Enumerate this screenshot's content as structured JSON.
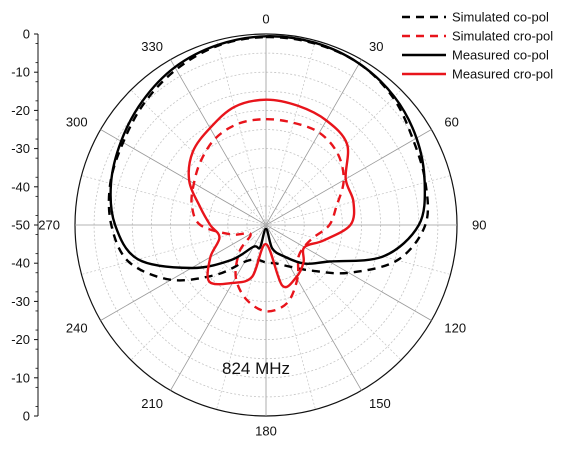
{
  "chart_data": {
    "type": "polar-line",
    "title": "",
    "annotation": "824 MHz",
    "radial_axis": {
      "min": -50,
      "max": 0,
      "step": 10,
      "tick_labels_top": [
        "0",
        "-10",
        "-20",
        "-30",
        "-40",
        "-50"
      ],
      "tick_labels_bottom": [
        "-40",
        "-30",
        "-20",
        "-10",
        "0"
      ]
    },
    "angular_axis": {
      "direction": "clockwise",
      "zero_at": "top",
      "labels": [
        "0",
        "30",
        "60",
        "90",
        "120",
        "150",
        "180",
        "210",
        "240",
        "270",
        "300",
        "330"
      ],
      "grid_step_deg": 15
    },
    "grid": true,
    "legend_position": "top-right",
    "series": [
      {
        "name": "Simulated co-pol",
        "color": "#000000",
        "dash": "dashed",
        "points": [
          [
            0,
            -0.8
          ],
          [
            15,
            -0.8
          ],
          [
            30,
            -1.2
          ],
          [
            45,
            -2.9
          ],
          [
            60,
            -5.5
          ],
          [
            75,
            -6.8
          ],
          [
            90,
            -8.3
          ],
          [
            105,
            -14.4
          ],
          [
            120,
            -25
          ],
          [
            135,
            -33.1
          ],
          [
            150,
            -37.4
          ],
          [
            165,
            -39.6
          ],
          [
            180,
            -40.2
          ],
          [
            195,
            -40.6
          ],
          [
            210,
            -38.9
          ],
          [
            225,
            -31.6
          ],
          [
            240,
            -21.3
          ],
          [
            255,
            -12.8
          ],
          [
            270,
            -9.5
          ],
          [
            285,
            -7.8
          ],
          [
            300,
            -6.8
          ],
          [
            315,
            -4.9
          ],
          [
            330,
            -3
          ],
          [
            345,
            -1.4
          ]
        ]
      },
      {
        "name": "Simulated cro-pol",
        "color": "#e8141b",
        "dash": "dashed",
        "points": [
          [
            0,
            -22.3
          ],
          [
            15,
            -22.3
          ],
          [
            30,
            -22.1
          ],
          [
            45,
            -23.5
          ],
          [
            60,
            -26.5
          ],
          [
            75,
            -30.9
          ],
          [
            90,
            -33.4
          ],
          [
            105,
            -37.2
          ],
          [
            120,
            -38.5
          ],
          [
            135,
            -38
          ],
          [
            150,
            -33.6
          ],
          [
            165,
            -28.8
          ],
          [
            180,
            -27.4
          ],
          [
            195,
            -29.9
          ],
          [
            210,
            -34.2
          ],
          [
            225,
            -40.2
          ],
          [
            240,
            -45.3
          ],
          [
            255,
            -40.5
          ],
          [
            270,
            -32.8
          ],
          [
            285,
            -29.9
          ],
          [
            300,
            -28.2
          ],
          [
            315,
            -26
          ],
          [
            330,
            -23.7
          ],
          [
            345,
            -22.5
          ]
        ]
      },
      {
        "name": "Measured co-pol",
        "color": "#000000",
        "dash": "solid",
        "points": [
          [
            0,
            -0.6
          ],
          [
            15,
            -0.6
          ],
          [
            30,
            -1.2
          ],
          [
            45,
            -2.5
          ],
          [
            60,
            -4.5
          ],
          [
            75,
            -7
          ],
          [
            90,
            -10
          ],
          [
            105,
            -18.2
          ],
          [
            120,
            -30.9
          ],
          [
            135,
            -35.7
          ],
          [
            150,
            -40.5
          ],
          [
            165,
            -43.6
          ],
          [
            180,
            -49
          ],
          [
            195,
            -43.9
          ],
          [
            210,
            -43.4
          ],
          [
            225,
            -37
          ],
          [
            240,
            -27.5
          ],
          [
            255,
            -15.3
          ],
          [
            270,
            -10.5
          ],
          [
            285,
            -8
          ],
          [
            300,
            -6.2
          ],
          [
            315,
            -4.2
          ],
          [
            330,
            -2.3
          ],
          [
            345,
            -1.2
          ]
        ]
      },
      {
        "name": "Measured cro-pol",
        "color": "#e8141b",
        "dash": "solid",
        "points": [
          [
            0,
            -17.2
          ],
          [
            15,
            -17.7
          ],
          [
            30,
            -18.4
          ],
          [
            45,
            -20
          ],
          [
            60,
            -25.9
          ],
          [
            75,
            -26.3
          ],
          [
            90,
            -27.9
          ],
          [
            105,
            -34.4
          ],
          [
            120,
            -38.4
          ],
          [
            135,
            -36.1
          ],
          [
            150,
            -34.2
          ],
          [
            165,
            -33.6
          ],
          [
            180,
            -45
          ],
          [
            195,
            -36
          ],
          [
            210,
            -32.5
          ],
          [
            225,
            -29
          ],
          [
            240,
            -33.2
          ],
          [
            255,
            -37.4
          ],
          [
            270,
            -35.4
          ],
          [
            285,
            -32.2
          ],
          [
            300,
            -26.8
          ],
          [
            315,
            -22.9
          ],
          [
            330,
            -20.7
          ],
          [
            345,
            -18
          ]
        ]
      }
    ]
  }
}
